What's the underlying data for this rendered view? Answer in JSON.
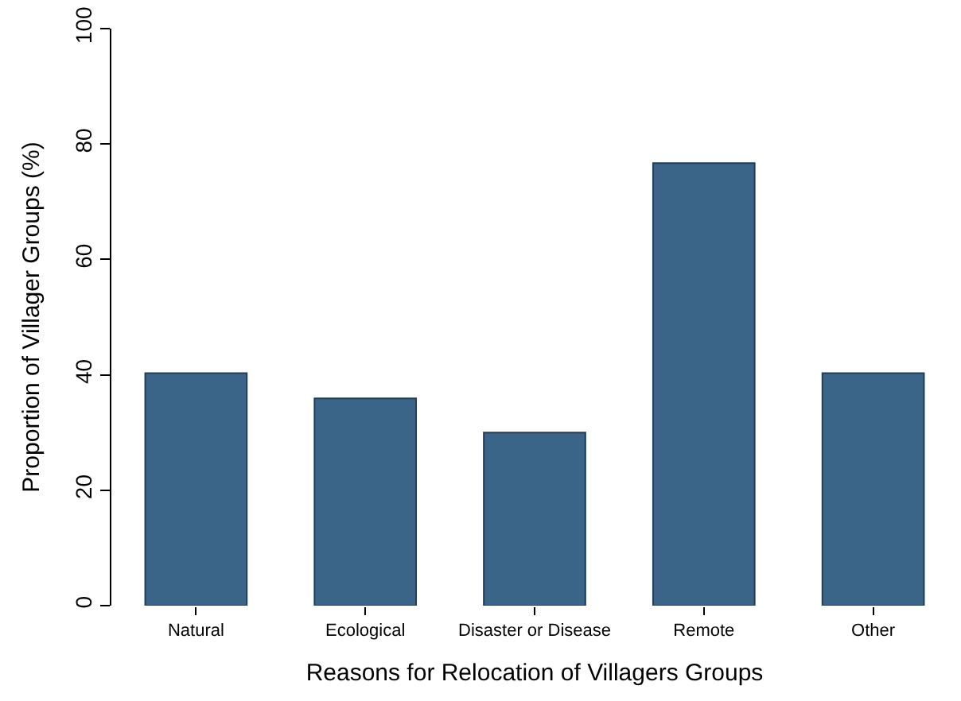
{
  "chart_data": {
    "type": "bar",
    "xlabel": "Reasons for Relocation of Villagers Groups",
    "ylabel": "Proportion of Villager Groups (%)",
    "categories": [
      "Natural",
      "Ecological",
      "Disaster or Disease",
      "Remote",
      "Other"
    ],
    "values": [
      40.3,
      35.9,
      30.0,
      76.7,
      40.3
    ],
    "color": "#3a6488",
    "ylim": [
      0,
      100
    ],
    "yticks": [
      0,
      20,
      40,
      60,
      80,
      100
    ]
  }
}
